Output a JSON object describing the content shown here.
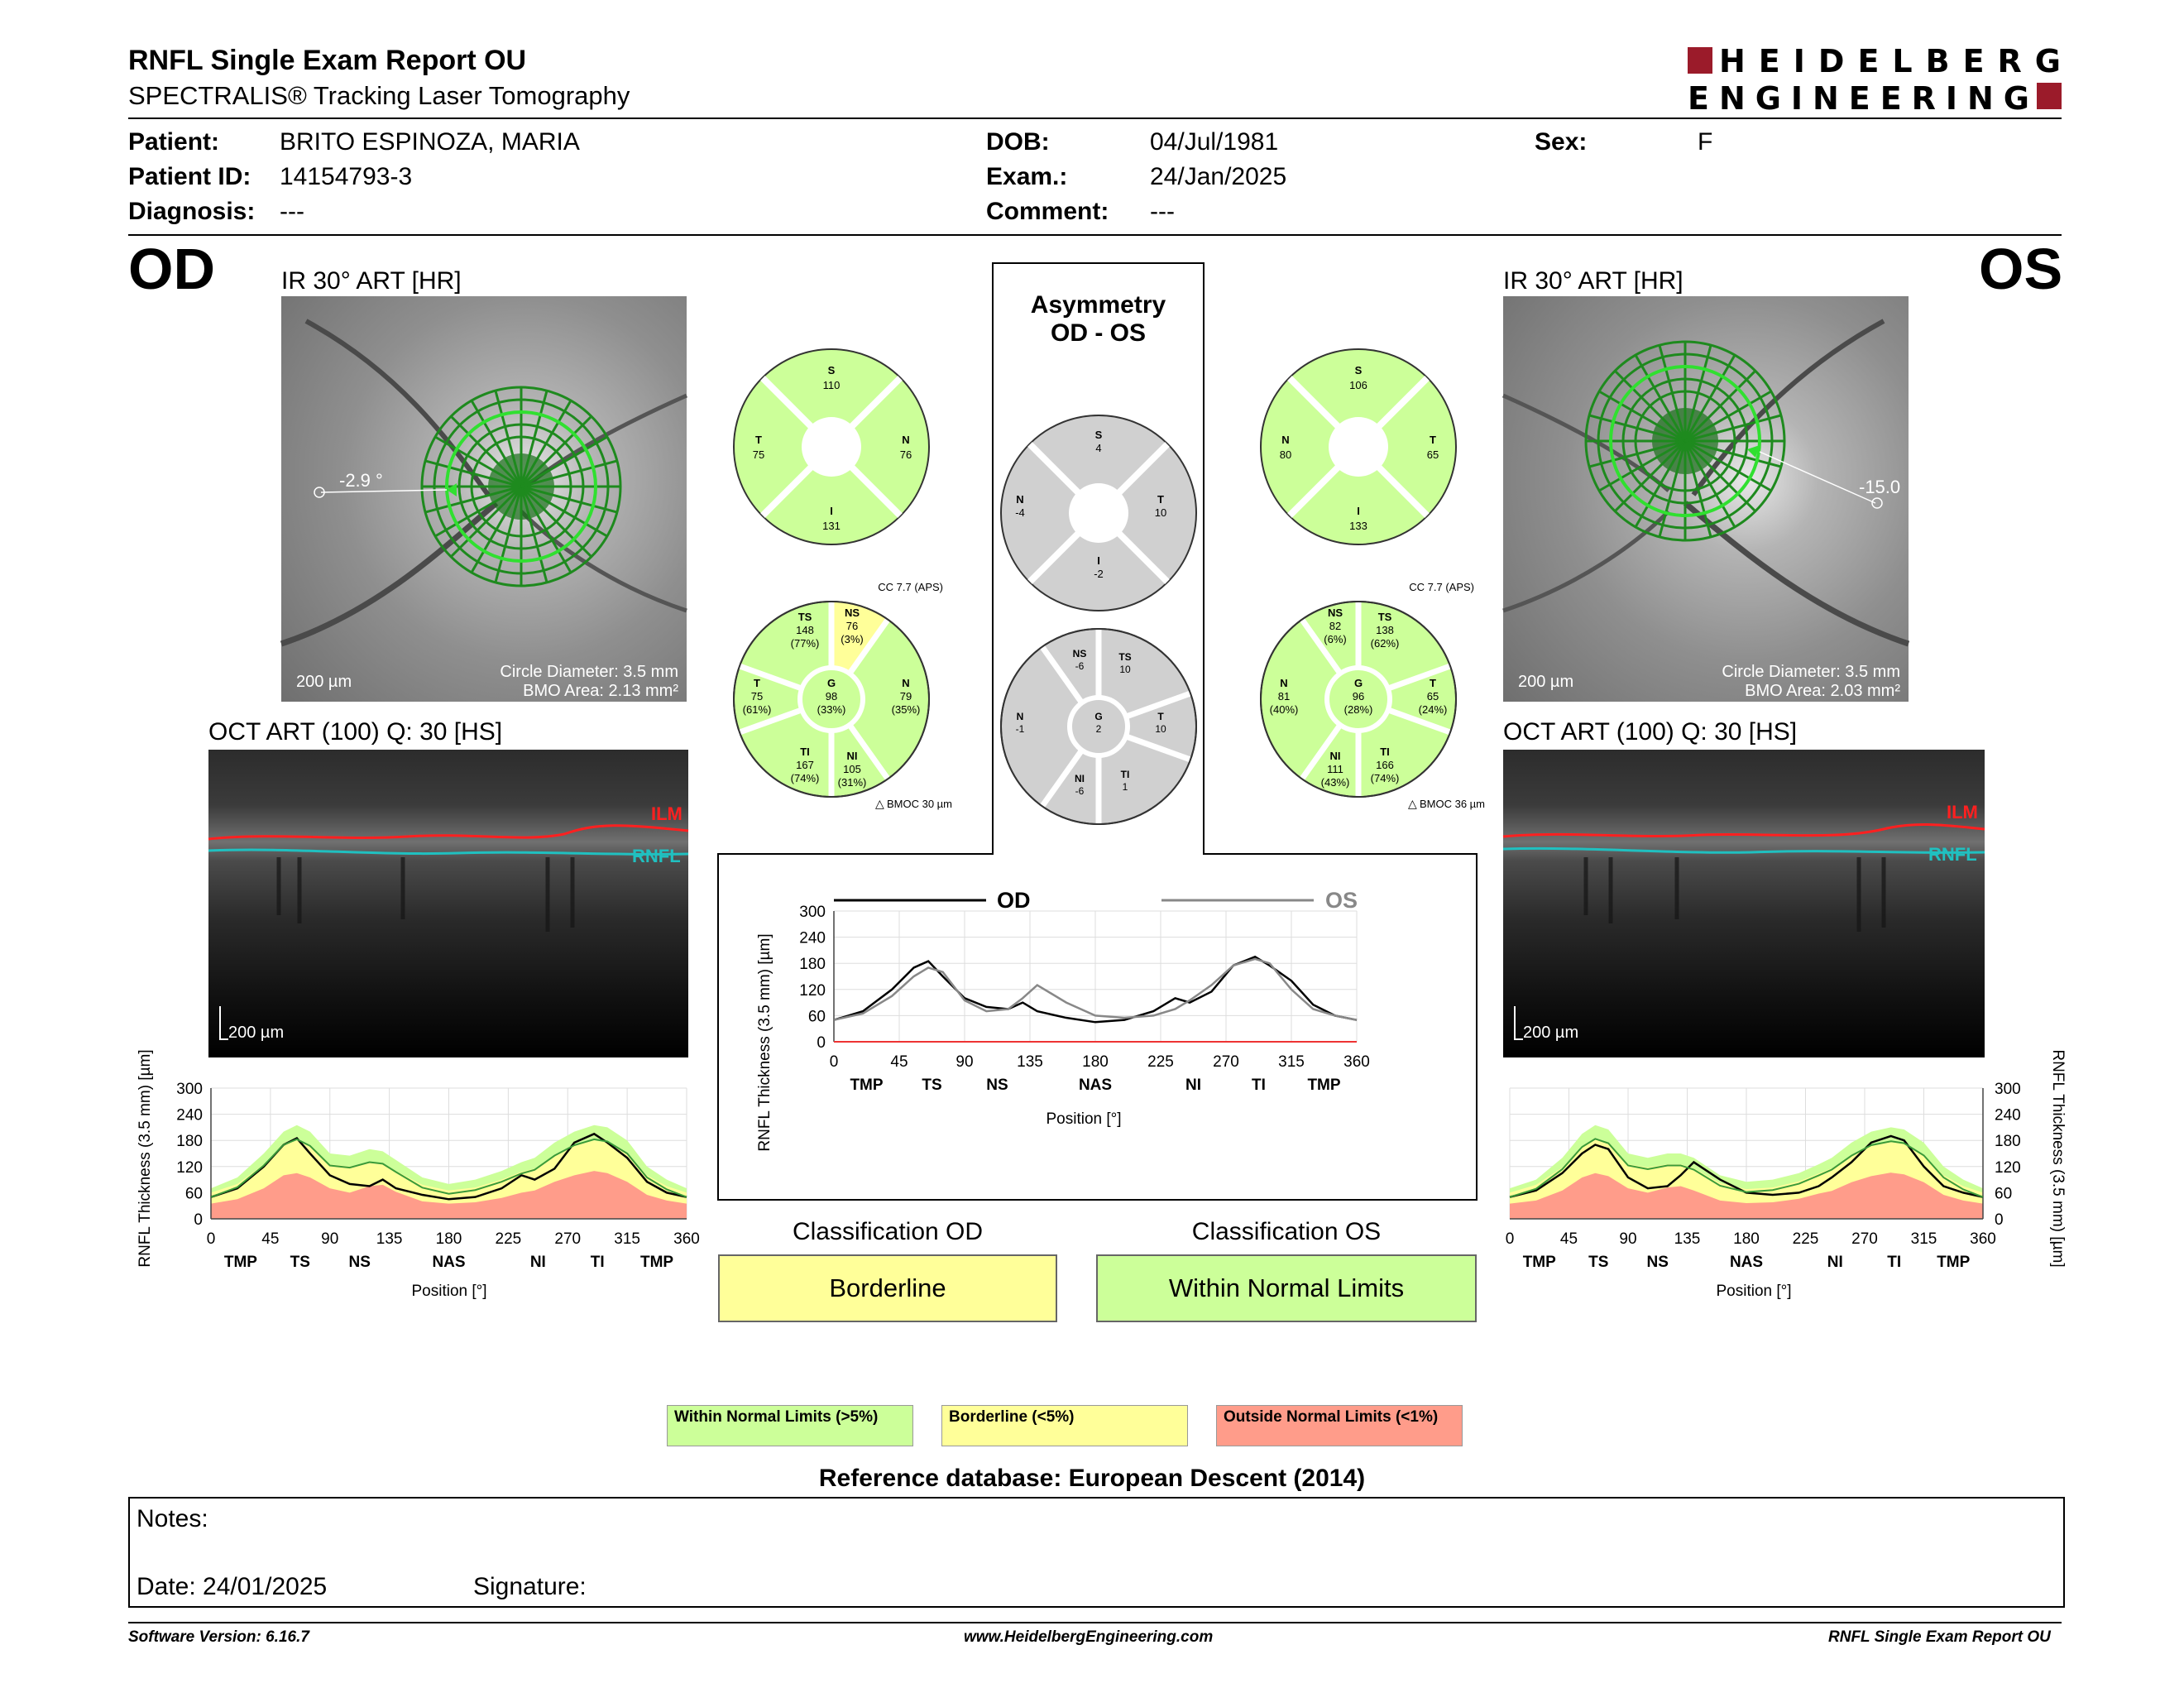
{
  "header": {
    "title": "RNFL Single Exam Report OU",
    "subtitle": "SPECTRALIS® Tracking Laser Tomography",
    "logo_line1": "HEIDELBERG",
    "logo_line2": "ENGINEERING"
  },
  "patient": {
    "patient_label": "Patient:",
    "patient_value": "BRITO ESPINOZA, MARIA",
    "id_label": "Patient ID:",
    "id_value": "14154793-3",
    "diag_label": "Diagnosis:",
    "diag_value": "---",
    "dob_label": "DOB:",
    "dob_value": "04/Jul/1981",
    "exam_label": "Exam.:",
    "exam_value": "24/Jan/2025",
    "comment_label": "Comment:",
    "comment_value": "---",
    "sex_label": "Sex:",
    "sex_value": "F"
  },
  "od": {
    "eye": "OD",
    "ir_label": "IR 30° ART [HR]",
    "angle": "-2.9 °",
    "scale": "200 µm",
    "circle_diameter": "Circle Diameter: 3.5 mm",
    "bmo_area": "BMO Area: 2.13 mm²",
    "oct_label": "OCT ART (100) Q: 30 [HS]",
    "oct_scale": "200 µm",
    "ilm": "ILM",
    "rnfl": "RNFL",
    "quad": {
      "S_label": "S",
      "S": "110",
      "N_label": "N",
      "N": "76",
      "I_label": "I",
      "I": "131",
      "T_label": "T",
      "T": "75"
    },
    "cc": "CC 7.7 (APS)",
    "bmoc": "BMOC 30 µm",
    "sectors": {
      "TS_label": "TS",
      "TS": "148",
      "TS_pct": "(77%)",
      "NS_label": "NS",
      "NS": "76",
      "NS_pct": "(3%)",
      "N_label": "N",
      "N": "79",
      "N_pct": "(35%)",
      "NI_label": "NI",
      "NI": "105",
      "NI_pct": "(31%)",
      "TI_label": "TI",
      "TI": "167",
      "TI_pct": "(74%)",
      "T_label": "T",
      "T": "75",
      "T_pct": "(61%)",
      "G_label": "G",
      "G": "98",
      "G_pct": "(33%)"
    },
    "classification_title": "Classification OD",
    "classification": "Borderline"
  },
  "os": {
    "eye": "OS",
    "ir_label": "IR 30° ART [HR]",
    "angle": "-15.0",
    "scale": "200 µm",
    "circle_diameter": "Circle Diameter: 3.5 mm",
    "bmo_area": "BMO Area: 2.03 mm²",
    "oct_label": "OCT ART (100) Q: 30 [HS]",
    "oct_scale": "200 µm",
    "ilm": "ILM",
    "rnfl": "RNFL",
    "quad": {
      "S_label": "S",
      "S": "106",
      "N_label": "N",
      "N": "80",
      "I_label": "I",
      "I": "133",
      "T_label": "T",
      "T": "65"
    },
    "cc": "CC 7.7 (APS)",
    "bmoc": "BMOC 36 µm",
    "sectors": {
      "NS_label": "NS",
      "NS": "82",
      "NS_pct": "(6%)",
      "TS_label": "TS",
      "TS": "138",
      "TS_pct": "(62%)",
      "T_label": "T",
      "T": "65",
      "T_pct": "(24%)",
      "TI_label": "TI",
      "TI": "166",
      "TI_pct": "(74%)",
      "NI_label": "NI",
      "NI": "111",
      "NI_pct": "(43%)",
      "N_label": "N",
      "N": "81",
      "N_pct": "(40%)",
      "G_label": "G",
      "G": "96",
      "G_pct": "(28%)"
    },
    "classification_title": "Classification OS",
    "classification": "Within Normal Limits"
  },
  "asymmetry": {
    "title1": "Asymmetry",
    "title2": "OD - OS",
    "quad": {
      "S_label": "S",
      "S": "4",
      "N_label": "N",
      "N": "-4",
      "I_label": "I",
      "I": "-2",
      "T_label": "T",
      "T": "10"
    },
    "sectors": {
      "NS_label": "NS",
      "NS": "-6",
      "TS_label": "TS",
      "TS": "10",
      "N_label": "N",
      "N": "-1",
      "T_label": "T",
      "T": "10",
      "NI_label": "NI",
      "NI": "-6",
      "TI_label": "TI",
      "TI": "1",
      "G_label": "G",
      "G": "2"
    }
  },
  "chart_common": {
    "ylabel": "RNFL Thickness (3.5 mm) [µm]",
    "xlabel": "Position [°]",
    "yticks": [
      "300",
      "240",
      "180",
      "120",
      "60",
      "0"
    ],
    "xticks": [
      "0",
      "45",
      "90",
      "135",
      "180",
      "225",
      "270",
      "315",
      "360"
    ],
    "sector_labels": [
      "TMP",
      "TS",
      "NS",
      "NAS",
      "NI",
      "TI",
      "TMP"
    ],
    "center_yticks": [
      "300",
      "240",
      "180",
      "120",
      "60",
      "0"
    ],
    "center_legend_od": "OD",
    "center_legend_os": "OS"
  },
  "chart_data": [
    {
      "type": "line",
      "chart": "OD TSNIT",
      "xlabel": "Position [°]",
      "ylabel": "RNFL Thickness (3.5 mm) [µm]",
      "xlim": [
        0,
        360
      ],
      "ylim": [
        0,
        300
      ],
      "x": [
        0,
        20,
        40,
        55,
        65,
        75,
        90,
        105,
        120,
        130,
        140,
        160,
        180,
        200,
        220,
        235,
        245,
        260,
        275,
        290,
        300,
        315,
        330,
        345,
        360
      ],
      "series": [
        {
          "name": "OD",
          "values": [
            50,
            70,
            120,
            170,
            185,
            150,
            100,
            80,
            75,
            90,
            70,
            55,
            45,
            50,
            70,
            100,
            90,
            115,
            175,
            195,
            175,
            140,
            85,
            60,
            50
          ]
        }
      ],
      "normal_upper": [
        70,
        95,
        150,
        200,
        215,
        200,
        150,
        145,
        160,
        155,
        135,
        95,
        80,
        90,
        110,
        130,
        140,
        175,
        200,
        215,
        210,
        180,
        120,
        90,
        70
      ],
      "borderline_upper": [
        60,
        80,
        125,
        170,
        180,
        165,
        125,
        120,
        130,
        128,
        110,
        78,
        65,
        72,
        90,
        108,
        115,
        145,
        168,
        180,
        175,
        150,
        100,
        75,
        60
      ],
      "outside_upper": [
        35,
        45,
        70,
        100,
        105,
        95,
        70,
        60,
        75,
        78,
        62,
        40,
        35,
        38,
        48,
        60,
        65,
        85,
        100,
        110,
        105,
        85,
        55,
        42,
        35
      ]
    },
    {
      "type": "line",
      "chart": "OS TSNIT",
      "xlabel": "Position [°]",
      "ylabel": "RNFL Thickness (3.5 mm) [µm]",
      "xlim": [
        0,
        360
      ],
      "ylim": [
        0,
        300
      ],
      "x": [
        0,
        20,
        40,
        55,
        65,
        75,
        90,
        105,
        120,
        130,
        140,
        160,
        180,
        200,
        220,
        235,
        245,
        260,
        275,
        290,
        300,
        315,
        330,
        345,
        360
      ],
      "series": [
        {
          "name": "OS",
          "values": [
            50,
            65,
            105,
            150,
            170,
            160,
            95,
            70,
            75,
            100,
            130,
            90,
            60,
            55,
            60,
            75,
            95,
            130,
            175,
            190,
            180,
            120,
            75,
            60,
            50
          ]
        }
      ],
      "normal_upper": [
        70,
        90,
        140,
        195,
        215,
        205,
        150,
        140,
        150,
        150,
        140,
        100,
        85,
        90,
        105,
        125,
        140,
        175,
        200,
        210,
        205,
        175,
        120,
        90,
        70
      ],
      "borderline_upper": [
        60,
        78,
        118,
        165,
        182,
        172,
        125,
        118,
        125,
        125,
        116,
        82,
        68,
        72,
        86,
        104,
        116,
        145,
        168,
        176,
        172,
        146,
        100,
        75,
        60
      ],
      "outside_upper": [
        35,
        42,
        65,
        95,
        105,
        98,
        70,
        60,
        72,
        75,
        65,
        42,
        36,
        38,
        46,
        58,
        64,
        84,
        98,
        106,
        102,
        84,
        55,
        42,
        35
      ]
    },
    {
      "type": "line",
      "chart": "OD vs OS",
      "xlabel": "Position [°]",
      "ylabel": "RNFL Thickness (3.5 mm) [µm]",
      "xlim": [
        0,
        360
      ],
      "ylim": [
        0,
        300
      ],
      "x": [
        0,
        20,
        40,
        55,
        65,
        75,
        90,
        105,
        120,
        130,
        140,
        160,
        180,
        200,
        220,
        235,
        245,
        260,
        275,
        290,
        300,
        315,
        330,
        345,
        360
      ],
      "series": [
        {
          "name": "OD",
          "values": [
            50,
            70,
            120,
            170,
            185,
            150,
            100,
            80,
            75,
            90,
            70,
            55,
            45,
            50,
            70,
            100,
            90,
            115,
            175,
            195,
            175,
            140,
            85,
            60,
            50
          ]
        },
        {
          "name": "OS",
          "values": [
            50,
            65,
            105,
            150,
            170,
            160,
            95,
            70,
            75,
            100,
            130,
            90,
            60,
            55,
            60,
            75,
            95,
            130,
            175,
            190,
            180,
            120,
            75,
            60,
            50
          ]
        }
      ]
    }
  ],
  "legend": {
    "wnl": "Within Normal Limits (>5%)",
    "bl": "Borderline (<5%)",
    "onl": "Outside Normal Limits (<1%)"
  },
  "colors": {
    "green": "#ccff99",
    "green_dark": "#9ddc6a",
    "yellow": "#ffff99",
    "red": "#ff9c8a",
    "gray": "#d0d0d0"
  },
  "reference": "Reference database: European Descent (2014)",
  "notes": {
    "label": "Notes:",
    "date": "Date: 24/01/2025",
    "signature": "Signature:"
  },
  "footer": {
    "left": "Software Version: 6.16.7",
    "center": "www.HeidelbergEngineering.com",
    "right": "RNFL Single Exam Report OU"
  }
}
